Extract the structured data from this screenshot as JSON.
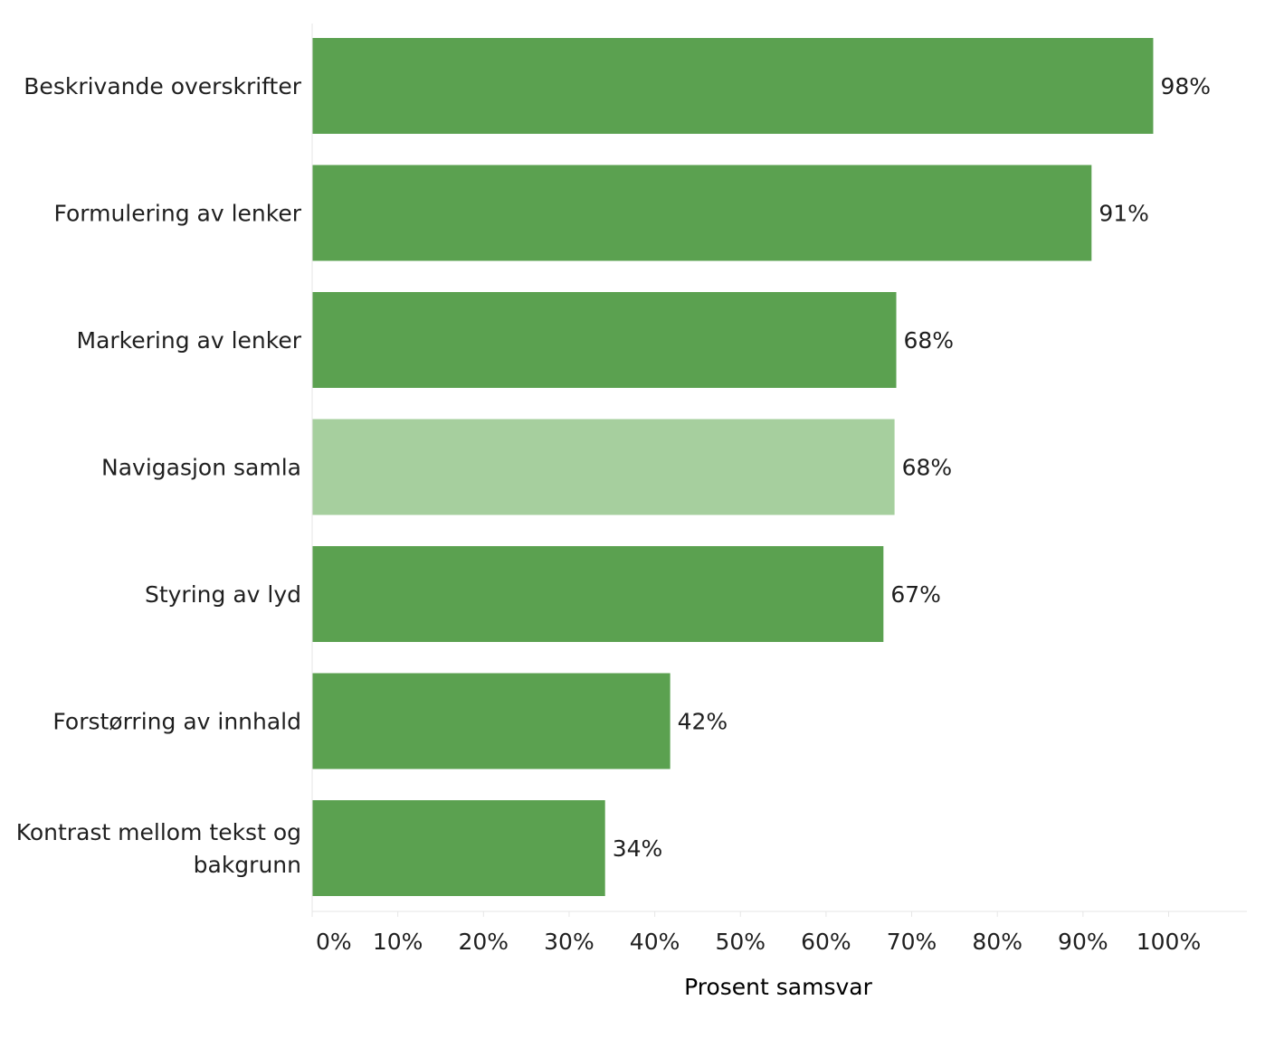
{
  "chart_data": {
    "type": "bar",
    "orientation": "horizontal",
    "title": "",
    "xlabel": "Prosent samsvar",
    "ylabel": "",
    "xlim": [
      0,
      100
    ],
    "grid": false,
    "categories": [
      [
        "Beskrivande overskrifter"
      ],
      [
        "Formulering av lenker"
      ],
      [
        "Markering av lenker"
      ],
      [
        "Navigasjon samla"
      ],
      [
        "Styring av lyd"
      ],
      [
        "Forstørring av innhald"
      ],
      [
        "Kontrast mellom tekst og",
        "bakgrunn"
      ]
    ],
    "values": [
      98.2,
      91.0,
      68.2,
      68.0,
      66.7,
      41.8,
      34.2
    ],
    "data_labels": [
      "98%",
      "91%",
      "68%",
      "68%",
      "67%",
      "42%",
      "34%"
    ],
    "highlighted": [
      "Navigasjon samla"
    ],
    "x_ticks": [
      0,
      10,
      20,
      30,
      40,
      50,
      60,
      70,
      80,
      90,
      100
    ],
    "x_tick_labels": [
      "0%",
      "10%",
      "20%",
      "30%",
      "40%",
      "50%",
      "60%",
      "70%",
      "80%",
      "90%",
      "100%"
    ],
    "colors": {
      "bar": "#5ba150",
      "bar_highlight": "#a6cf9e",
      "axis": "#e6e6e6"
    }
  }
}
